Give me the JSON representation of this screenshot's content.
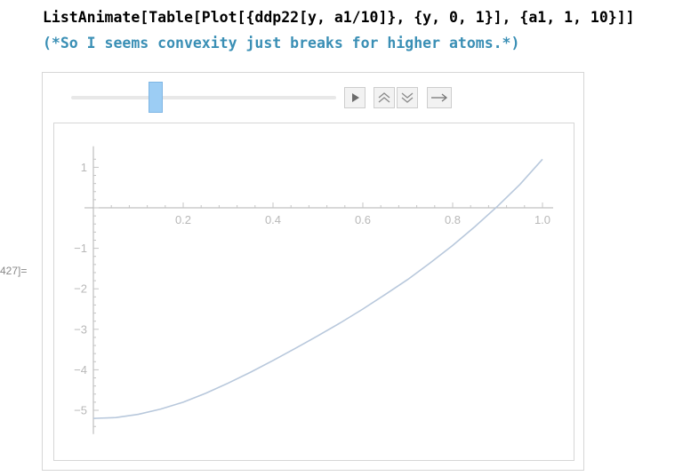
{
  "input": {
    "code_text": "ListAnimate[Table[Plot[{ddp22[y, a1/10]}, {y, 0, 1}], {a1, 1, 10}]]",
    "comment_text": "(*So I seems convexity just breaks for higher atoms.*)"
  },
  "output": {
    "label": "427]="
  },
  "controls": {
    "slider_fraction": 0.32,
    "play_icon": "play-icon",
    "faster_icon": "double-chevron-up-icon",
    "slower_icon": "double-chevron-down-icon",
    "direction_icon": "right-arrow-icon"
  },
  "colors": {
    "curve": "#b8c8dc",
    "axis": "#b0b0b0",
    "slider_thumb": "#9ccdf4"
  },
  "chart_data": {
    "type": "line",
    "xlim": [
      0,
      1.0
    ],
    "ylim": [
      -5.5,
      1.3
    ],
    "x_ticks": [
      {
        "value": 0.2,
        "label": "0.2"
      },
      {
        "value": 0.4,
        "label": "0.4"
      },
      {
        "value": 0.6,
        "label": "0.6"
      },
      {
        "value": 0.8,
        "label": "0.8"
      },
      {
        "value": 1.0,
        "label": "1.0"
      }
    ],
    "y_ticks": [
      {
        "value": 1,
        "label": "1"
      },
      {
        "value": -1,
        "label": "−1"
      },
      {
        "value": -2,
        "label": "−2"
      },
      {
        "value": -3,
        "label": "−3"
      },
      {
        "value": -4,
        "label": "−4"
      },
      {
        "value": -5,
        "label": "−5"
      }
    ],
    "series": [
      {
        "x": [
          0.0,
          0.05,
          0.1,
          0.15,
          0.2,
          0.25,
          0.3,
          0.35,
          0.4,
          0.45,
          0.5,
          0.55,
          0.6,
          0.65,
          0.7,
          0.75,
          0.8,
          0.85,
          0.9,
          0.95,
          1.0
        ],
        "y": [
          -5.2,
          -5.18,
          -5.1,
          -4.97,
          -4.8,
          -4.58,
          -4.33,
          -4.06,
          -3.77,
          -3.47,
          -3.16,
          -2.84,
          -2.5,
          -2.14,
          -1.77,
          -1.36,
          -0.93,
          -0.46,
          0.04,
          0.58,
          1.2
        ]
      }
    ]
  }
}
